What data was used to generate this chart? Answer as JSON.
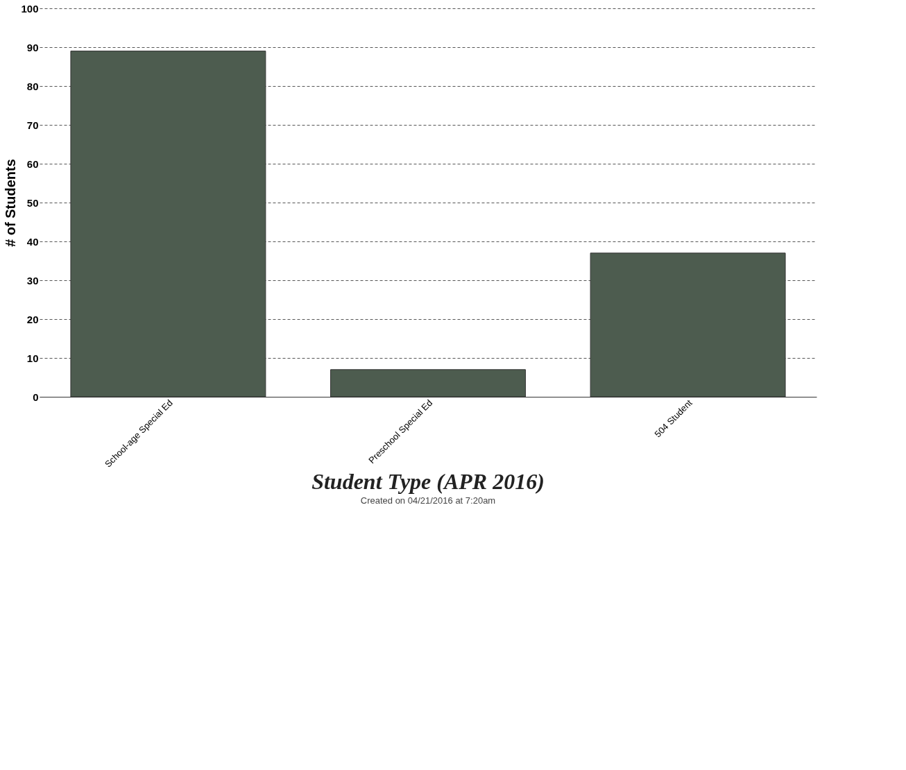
{
  "chart_data": {
    "type": "bar",
    "title": "Student Type (APR 2016)",
    "ylabel": "# of Students",
    "categories": [
      "School-age Special Ed",
      "Preschool Special Ed",
      "504 Student"
    ],
    "values": [
      89,
      7,
      37
    ],
    "color": "#4d5c4f",
    "ylim": [
      0,
      100
    ],
    "yticks": [
      0,
      10,
      20,
      30,
      40,
      50,
      60,
      70,
      80,
      90,
      100
    ],
    "grid": "y",
    "annotations": [
      "Created on 04/21/2016 at 7:20am"
    ]
  }
}
